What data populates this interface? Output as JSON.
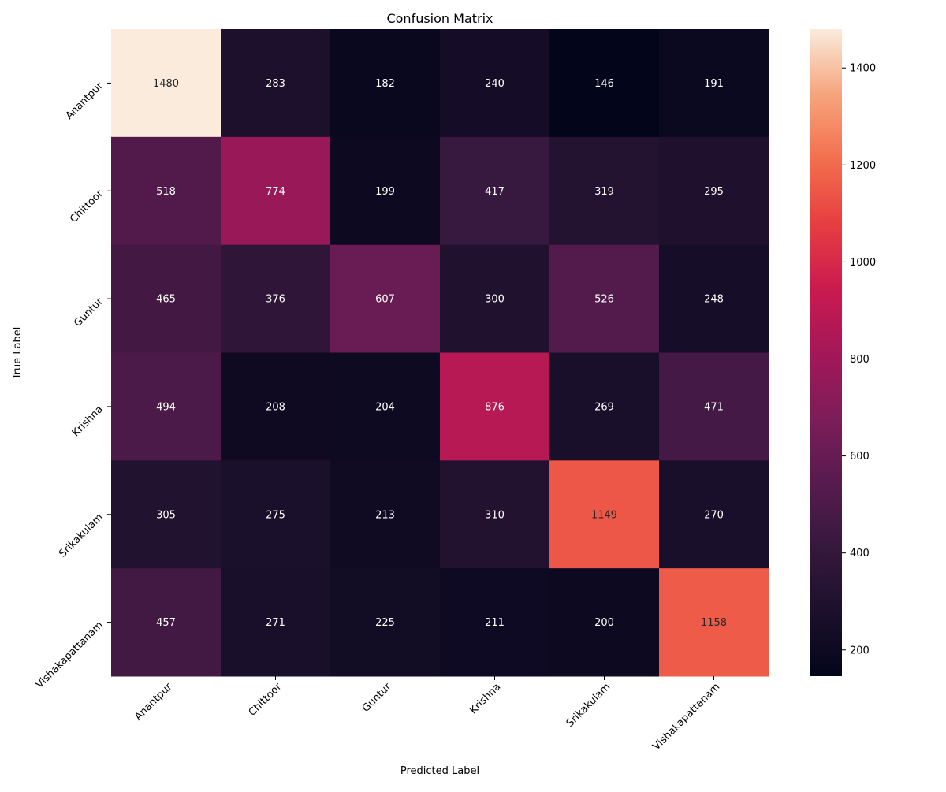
{
  "chart_data": {
    "type": "heatmap",
    "title": "Confusion Matrix",
    "xlabel": "Predicted Label",
    "ylabel": "True Label",
    "x_categories": [
      "Anantpur",
      "Chittoor",
      "Guntur",
      "Krishna",
      "Srikakulam",
      "Vishakapattanam"
    ],
    "y_categories": [
      "Anantpur",
      "Chittoor",
      "Guntur",
      "Krishna",
      "Srikakulam",
      "Vishakapattanam"
    ],
    "values": [
      [
        1480,
        283,
        182,
        240,
        146,
        191
      ],
      [
        518,
        774,
        199,
        417,
        319,
        295
      ],
      [
        465,
        376,
        607,
        300,
        526,
        248
      ],
      [
        494,
        208,
        204,
        876,
        269,
        471
      ],
      [
        305,
        275,
        213,
        310,
        1149,
        270
      ],
      [
        457,
        271,
        225,
        211,
        200,
        1158
      ]
    ],
    "colorbar": {
      "range": [
        146,
        1480
      ],
      "ticks": [
        200,
        400,
        600,
        800,
        1000,
        1200,
        1400
      ],
      "colormap": "rocket"
    },
    "grid": false
  }
}
